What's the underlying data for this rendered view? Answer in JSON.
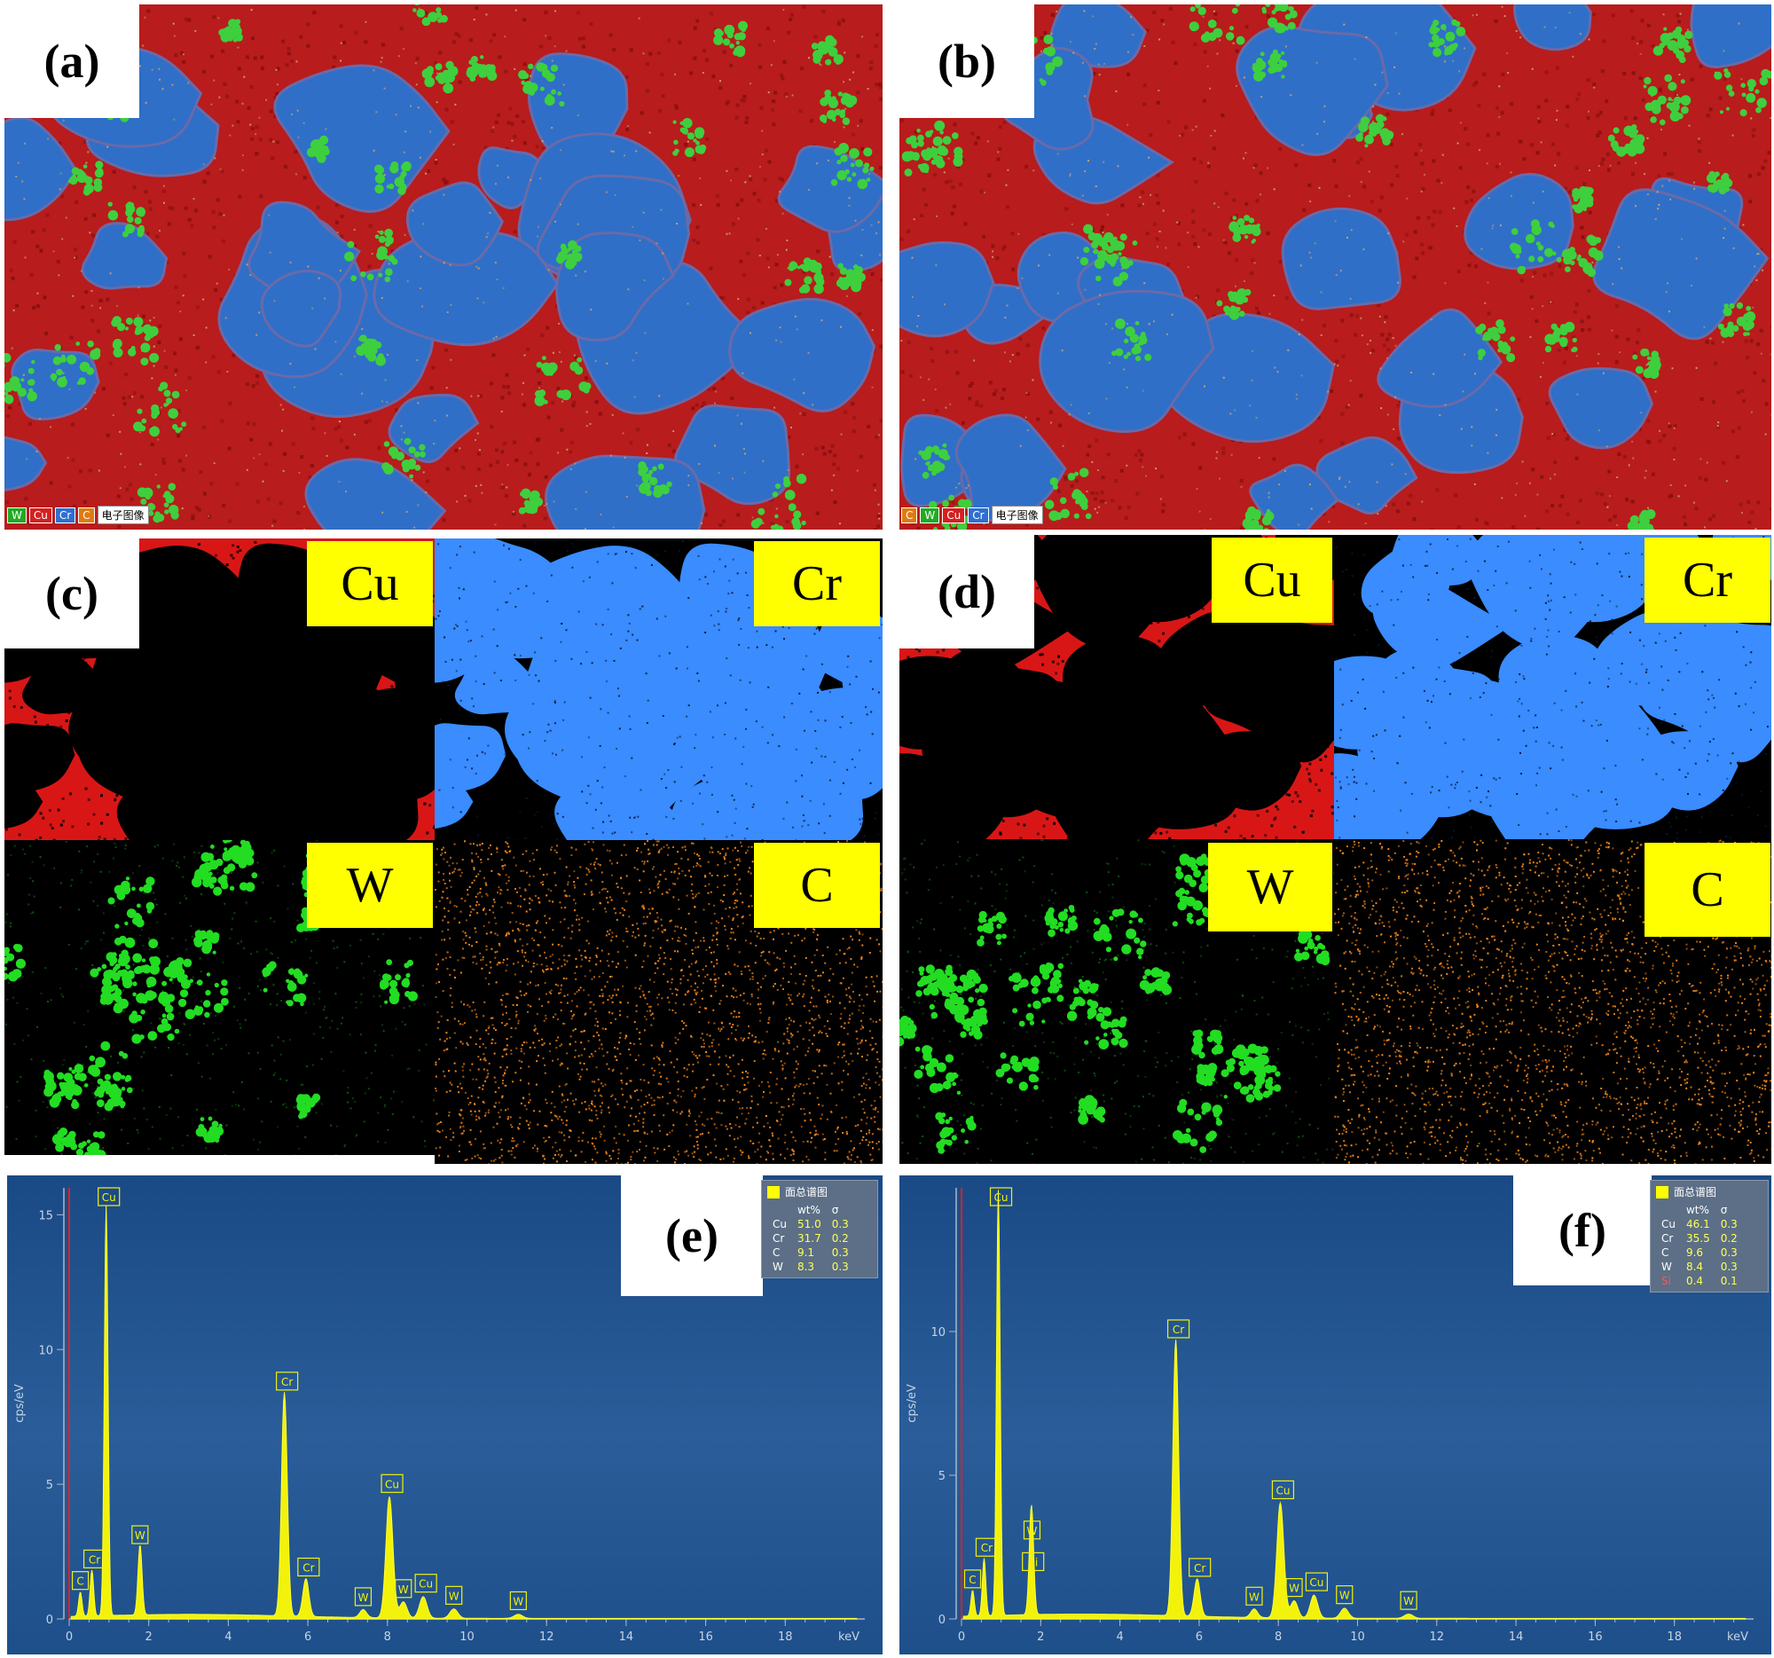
{
  "panels": {
    "a": {
      "label": "(a)",
      "legend": [
        "W",
        "Cu",
        "Cr",
        "C"
      ],
      "legend_colors": [
        "#22aa22",
        "#d42020",
        "#2f6fd0",
        "#e07a10"
      ],
      "legend_image": "电子图像"
    },
    "b": {
      "label": "(b)",
      "legend": [
        "C",
        "W",
        "Cu",
        "Cr"
      ],
      "legend_colors": [
        "#e07a10",
        "#22aa22",
        "#d42020",
        "#2f6fd0"
      ],
      "legend_image": "电子图像"
    },
    "c": {
      "label": "(c)",
      "maps": [
        "Cu",
        "Cr",
        "W",
        "C"
      ]
    },
    "d": {
      "label": "(d)",
      "maps": [
        "Cu",
        "Cr",
        "W",
        "C"
      ]
    },
    "e": {
      "label": "(e)"
    },
    "f": {
      "label": "(f)"
    }
  },
  "map_colors": {
    "Cu": "#ff1a1a",
    "Cr": "#3a8cff",
    "W": "#22dd22",
    "C": "#ff8c1a"
  },
  "chart_data": [
    {
      "type": "line",
      "panel": "(e)",
      "xlabel": "keV",
      "ylabel": "cps/eV",
      "xlim": [
        0,
        20
      ],
      "ylim": [
        0,
        16
      ],
      "xticks": [
        0,
        2,
        4,
        6,
        8,
        10,
        12,
        14,
        16,
        18
      ],
      "yticks": [
        0,
        5,
        10,
        15
      ],
      "peaks": [
        {
          "x": 0.28,
          "y": 0.9,
          "label": "C"
        },
        {
          "x": 0.57,
          "y": 1.7,
          "label": "Cr"
        },
        {
          "x": 0.93,
          "y": 15.2,
          "label": "Cu"
        },
        {
          "x": 1.78,
          "y": 2.6,
          "label": "W"
        },
        {
          "x": 5.41,
          "y": 8.3,
          "label": "Cr"
        },
        {
          "x": 5.95,
          "y": 1.4,
          "label": "Cr"
        },
        {
          "x": 7.39,
          "y": 0.3,
          "label": "W"
        },
        {
          "x": 8.05,
          "y": 4.5,
          "label": "Cu"
        },
        {
          "x": 8.4,
          "y": 0.6,
          "label": "W"
        },
        {
          "x": 8.9,
          "y": 0.8,
          "label": "Cu"
        },
        {
          "x": 9.67,
          "y": 0.35,
          "label": "W"
        },
        {
          "x": 11.29,
          "y": 0.15,
          "label": "W"
        }
      ],
      "table": {
        "title": "面总谱图",
        "headers": [
          "",
          "wt%",
          "σ"
        ],
        "rows": [
          {
            "element": "Cu",
            "wt": "51.0",
            "sigma": "0.3"
          },
          {
            "element": "Cr",
            "wt": "31.7",
            "sigma": "0.2"
          },
          {
            "element": "C",
            "wt": "9.1",
            "sigma": "0.3"
          },
          {
            "element": "W",
            "wt": "8.3",
            "sigma": "0.3"
          }
        ]
      }
    },
    {
      "type": "line",
      "panel": "(f)",
      "xlabel": "keV",
      "ylabel": "cps/eV",
      "xlim": [
        0,
        20
      ],
      "ylim": [
        0,
        15
      ],
      "xticks": [
        0,
        2,
        4,
        6,
        8,
        10,
        12,
        14,
        16,
        18
      ],
      "yticks": [
        0,
        5,
        10
      ],
      "peaks": [
        {
          "x": 0.28,
          "y": 0.9,
          "label": "C"
        },
        {
          "x": 0.57,
          "y": 2.0,
          "label": "Cr"
        },
        {
          "x": 0.93,
          "y": 14.8,
          "label": "Cu"
        },
        {
          "x": 1.74,
          "y": 1.5,
          "label": "Si"
        },
        {
          "x": 1.78,
          "y": 2.6,
          "label": "W"
        },
        {
          "x": 5.41,
          "y": 9.6,
          "label": "Cr"
        },
        {
          "x": 5.95,
          "y": 1.3,
          "label": "Cr"
        },
        {
          "x": 7.39,
          "y": 0.3,
          "label": "W"
        },
        {
          "x": 8.05,
          "y": 4.0,
          "label": "Cu"
        },
        {
          "x": 8.4,
          "y": 0.6,
          "label": "W"
        },
        {
          "x": 8.9,
          "y": 0.8,
          "label": "Cu"
        },
        {
          "x": 9.67,
          "y": 0.35,
          "label": "W"
        },
        {
          "x": 11.29,
          "y": 0.15,
          "label": "W"
        }
      ],
      "table": {
        "title": "面总谱图",
        "headers": [
          "",
          "wt%",
          "σ"
        ],
        "rows": [
          {
            "element": "Cu",
            "wt": "46.1",
            "sigma": "0.3"
          },
          {
            "element": "Cr",
            "wt": "35.5",
            "sigma": "0.2"
          },
          {
            "element": "C",
            "wt": "9.6",
            "sigma": "0.3"
          },
          {
            "element": "W",
            "wt": "8.4",
            "sigma": "0.3"
          },
          {
            "element": "Si",
            "wt": "0.4",
            "sigma": "0.1"
          }
        ]
      }
    }
  ]
}
